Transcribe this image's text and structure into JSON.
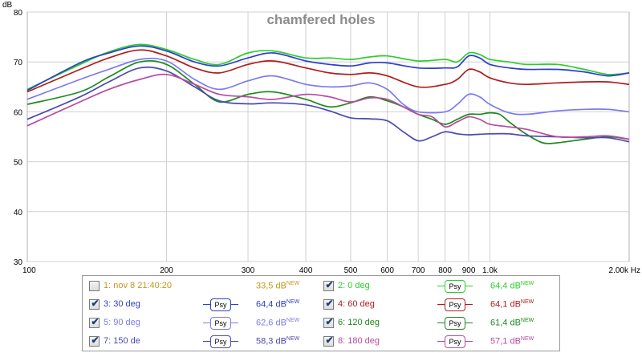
{
  "chart_data": {
    "type": "line",
    "title": "chamfered holes",
    "ylabel": "dB",
    "xlabel": "",
    "x_scale": "log",
    "xlim": [
      100,
      2000
    ],
    "ylim": [
      30,
      80
    ],
    "grid": true,
    "x_ticks": [
      {
        "v": 100,
        "label": "100"
      },
      {
        "v": 200,
        "label": "200"
      },
      {
        "v": 300,
        "label": "300"
      },
      {
        "v": 400,
        "label": "400"
      },
      {
        "v": 500,
        "label": "500"
      },
      {
        "v": 600,
        "label": "600"
      },
      {
        "v": 700,
        "label": "700"
      },
      {
        "v": 800,
        "label": "800"
      },
      {
        "v": 900,
        "label": "900"
      },
      {
        "v": 1000,
        "label": "1,0k"
      },
      {
        "v": 2000,
        "label": "2,00k Hz"
      }
    ],
    "y_ticks": [
      {
        "v": 30,
        "label": "30"
      },
      {
        "v": 40,
        "label": "40"
      },
      {
        "v": 50,
        "label": "50"
      },
      {
        "v": 60,
        "label": "60"
      },
      {
        "v": 70,
        "label": "70"
      },
      {
        "v": 80,
        "label": "80"
      }
    ],
    "series": [
      {
        "name": "0 deg",
        "color": "#2ecc2e",
        "points": [
          [
            100,
            64.5
          ],
          [
            130,
            69.5
          ],
          [
            150,
            72
          ],
          [
            175,
            73.5
          ],
          [
            200,
            72.5
          ],
          [
            230,
            70.5
          ],
          [
            260,
            69.5
          ],
          [
            300,
            71.8
          ],
          [
            340,
            72.2
          ],
          [
            400,
            70.8
          ],
          [
            450,
            70.8
          ],
          [
            500,
            70.5
          ],
          [
            550,
            71
          ],
          [
            600,
            71.2
          ],
          [
            700,
            70.2
          ],
          [
            800,
            70.5
          ],
          [
            850,
            70
          ],
          [
            900,
            71.8
          ],
          [
            950,
            71.5
          ],
          [
            1000,
            70.5
          ],
          [
            1100,
            70
          ],
          [
            1200,
            69.5
          ],
          [
            1400,
            69.5
          ],
          [
            1600,
            68.5
          ],
          [
            1800,
            67.5
          ],
          [
            2000,
            67.8
          ]
        ]
      },
      {
        "name": "30 deg",
        "color": "#2b3fcc",
        "points": [
          [
            100,
            64.3
          ],
          [
            130,
            69.8
          ],
          [
            150,
            71.8
          ],
          [
            175,
            73.2
          ],
          [
            200,
            72.2
          ],
          [
            230,
            70
          ],
          [
            260,
            69.2
          ],
          [
            300,
            70.8
          ],
          [
            340,
            71.8
          ],
          [
            400,
            70.2
          ],
          [
            450,
            69.5
          ],
          [
            500,
            69.2
          ],
          [
            550,
            69.8
          ],
          [
            600,
            69.8
          ],
          [
            700,
            68.8
          ],
          [
            800,
            68.8
          ],
          [
            850,
            69
          ],
          [
            900,
            71.2
          ],
          [
            950,
            70.8
          ],
          [
            1000,
            69.5
          ],
          [
            1100,
            68.8
          ],
          [
            1200,
            68.5
          ],
          [
            1400,
            68.5
          ],
          [
            1600,
            68
          ],
          [
            1800,
            67.2
          ],
          [
            2000,
            67.8
          ]
        ]
      },
      {
        "name": "60 deg",
        "color": "#b01c1c",
        "points": [
          [
            100,
            64
          ],
          [
            130,
            68.5
          ],
          [
            150,
            70.8
          ],
          [
            175,
            72.4
          ],
          [
            200,
            71.2
          ],
          [
            230,
            68.8
          ],
          [
            260,
            67.8
          ],
          [
            300,
            69.5
          ],
          [
            340,
            70.2
          ],
          [
            400,
            68.8
          ],
          [
            450,
            67.8
          ],
          [
            500,
            67.5
          ],
          [
            550,
            67.8
          ],
          [
            600,
            67.2
          ],
          [
            700,
            65
          ],
          [
            800,
            65.5
          ],
          [
            850,
            66.5
          ],
          [
            900,
            68.5
          ],
          [
            950,
            68
          ],
          [
            1000,
            66.8
          ],
          [
            1100,
            65.8
          ],
          [
            1200,
            65.5
          ],
          [
            1400,
            65.8
          ],
          [
            1600,
            66
          ],
          [
            1800,
            66
          ],
          [
            2000,
            65.5
          ]
        ]
      },
      {
        "name": "90 deg",
        "color": "#7b7bf0",
        "points": [
          [
            100,
            62.5
          ],
          [
            130,
            66.5
          ],
          [
            150,
            68.5
          ],
          [
            175,
            70.5
          ],
          [
            200,
            70.2
          ],
          [
            230,
            66.5
          ],
          [
            260,
            64.5
          ],
          [
            300,
            66.2
          ],
          [
            340,
            67.2
          ],
          [
            400,
            65.5
          ],
          [
            450,
            65
          ],
          [
            500,
            65.2
          ],
          [
            550,
            65.8
          ],
          [
            600,
            64.5
          ],
          [
            650,
            61.5
          ],
          [
            700,
            60
          ],
          [
            800,
            60
          ],
          [
            850,
            61.5
          ],
          [
            900,
            63.5
          ],
          [
            950,
            63
          ],
          [
            1000,
            61.5
          ],
          [
            1100,
            59.8
          ],
          [
            1200,
            59.5
          ],
          [
            1400,
            60.2
          ],
          [
            1600,
            60.5
          ],
          [
            1800,
            60.5
          ],
          [
            2000,
            60
          ]
        ]
      },
      {
        "name": "120 deg",
        "color": "#1e8a1e",
        "points": [
          [
            100,
            61.5
          ],
          [
            130,
            64
          ],
          [
            150,
            67
          ],
          [
            175,
            70
          ],
          [
            200,
            69.5
          ],
          [
            230,
            65.5
          ],
          [
            260,
            62
          ],
          [
            300,
            63.5
          ],
          [
            340,
            64
          ],
          [
            400,
            62.5
          ],
          [
            450,
            61
          ],
          [
            500,
            61.8
          ],
          [
            550,
            63
          ],
          [
            600,
            62.2
          ],
          [
            650,
            61
          ],
          [
            700,
            59.5
          ],
          [
            750,
            58.5
          ],
          [
            800,
            57.5
          ],
          [
            850,
            58.5
          ],
          [
            900,
            59.5
          ],
          [
            950,
            59.5
          ],
          [
            1000,
            59.8
          ],
          [
            1050,
            59.5
          ],
          [
            1100,
            58
          ],
          [
            1200,
            55.5
          ],
          [
            1300,
            53.8
          ],
          [
            1400,
            53.8
          ],
          [
            1600,
            54.5
          ],
          [
            1800,
            55
          ],
          [
            2000,
            54.5
          ]
        ]
      },
      {
        "name": "150 de",
        "color": "#4a4ab0",
        "points": [
          [
            100,
            58.5
          ],
          [
            130,
            63
          ],
          [
            150,
            66
          ],
          [
            175,
            68.8
          ],
          [
            200,
            68.2
          ],
          [
            230,
            65
          ],
          [
            260,
            62.2
          ],
          [
            300,
            61.6
          ],
          [
            340,
            61.8
          ],
          [
            400,
            61.4
          ],
          [
            450,
            60.2
          ],
          [
            500,
            58.8
          ],
          [
            550,
            58.6
          ],
          [
            600,
            58.2
          ],
          [
            650,
            56
          ],
          [
            700,
            54.2
          ],
          [
            750,
            55
          ],
          [
            800,
            56
          ],
          [
            850,
            55.6
          ],
          [
            900,
            55.4
          ],
          [
            950,
            55.5
          ],
          [
            1000,
            55.6
          ],
          [
            1100,
            55.6
          ],
          [
            1200,
            55.2
          ],
          [
            1400,
            55
          ],
          [
            1600,
            54.8
          ],
          [
            1800,
            54.8
          ],
          [
            2000,
            54
          ]
        ]
      },
      {
        "name": "180 deg",
        "color": "#b84aa0",
        "points": [
          [
            100,
            57.2
          ],
          [
            130,
            62
          ],
          [
            150,
            64.5
          ],
          [
            175,
            66.5
          ],
          [
            200,
            67.5
          ],
          [
            230,
            65.5
          ],
          [
            260,
            63.5
          ],
          [
            300,
            63
          ],
          [
            340,
            62.5
          ],
          [
            400,
            63.5
          ],
          [
            450,
            63
          ],
          [
            500,
            62
          ],
          [
            550,
            62.8
          ],
          [
            600,
            62.5
          ],
          [
            650,
            61
          ],
          [
            700,
            59.5
          ],
          [
            750,
            59
          ],
          [
            800,
            57
          ],
          [
            850,
            58
          ],
          [
            900,
            59
          ],
          [
            950,
            58.5
          ],
          [
            1000,
            57.5
          ],
          [
            1100,
            57
          ],
          [
            1200,
            56.5
          ],
          [
            1400,
            55
          ],
          [
            1600,
            55
          ],
          [
            1800,
            55.2
          ],
          [
            2000,
            54.5
          ]
        ]
      }
    ]
  },
  "legend": [
    {
      "label": "1: nov 8 21:40:20",
      "checked": false,
      "psy": false,
      "value": "33,5 dB",
      "sup": "NEW",
      "color": "#c8961e"
    },
    {
      "label": "2: 0 deg",
      "checked": true,
      "psy": true,
      "psy_label": "Psy",
      "value": "64,4 dB",
      "sup": "NEW",
      "color": "#2ecc2e"
    },
    {
      "label": "3: 30 deg",
      "checked": true,
      "psy": true,
      "psy_label": "Psy",
      "value": "64,4 dB",
      "sup": "NEW",
      "color": "#2b3fcc"
    },
    {
      "label": "4: 60 deg",
      "checked": true,
      "psy": true,
      "psy_label": "Psy",
      "value": "64,1 dB",
      "sup": "NEW",
      "color": "#b01c1c"
    },
    {
      "label": "5: 90 deg",
      "checked": true,
      "psy": true,
      "psy_label": "Psy",
      "value": "62,6 dB",
      "sup": "NEW",
      "color": "#7b7bf0"
    },
    {
      "label": "6: 120 deg",
      "checked": true,
      "psy": true,
      "psy_label": "Psy",
      "value": "61,4 dB",
      "sup": "NEW",
      "color": "#1e8a1e"
    },
    {
      "label": "7: 150 de",
      "checked": true,
      "psy": true,
      "psy_label": "Psy",
      "value": "58,3 dB",
      "sup": "NEW",
      "color": "#4a4ab0"
    },
    {
      "label": "8: 180 deg",
      "checked": true,
      "psy": true,
      "psy_label": "Psy",
      "value": "57,1 dB",
      "sup": "NEW",
      "color": "#b84aa0"
    }
  ]
}
